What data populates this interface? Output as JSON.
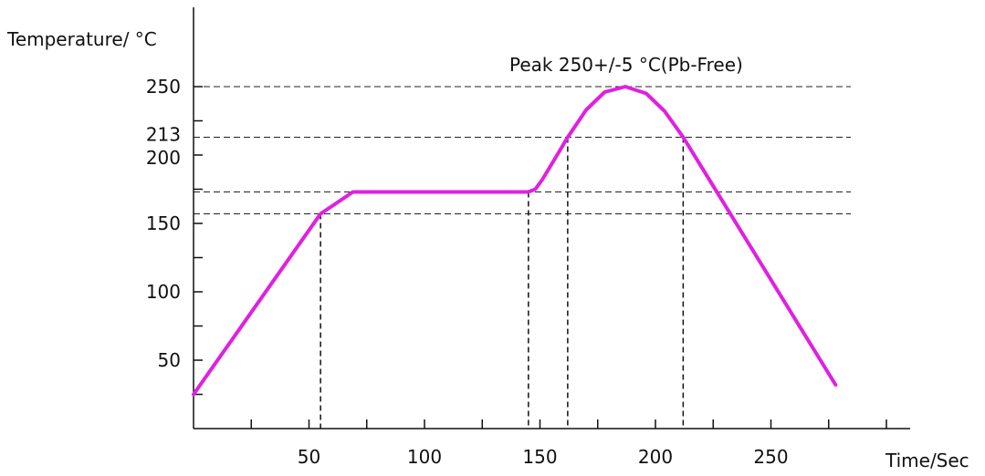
{
  "chart_data": {
    "type": "line",
    "title": "",
    "ylabel": "Temperature/ °C",
    "xlabel": "Time/Sec",
    "xlim": [
      0,
      310
    ],
    "ylim": [
      0,
      265
    ],
    "x_ticks": [
      50,
      100,
      150,
      200,
      250
    ],
    "x_minor_ticks": [
      25,
      75,
      125,
      175,
      225,
      275,
      300
    ],
    "y_ticks": [
      50,
      100,
      150,
      200,
      250
    ],
    "y_ticks_extra": [
      213
    ],
    "y_minor_ticks": [
      25,
      75,
      125,
      175,
      225
    ],
    "line_color": "#e020e0",
    "series": [
      {
        "name": "",
        "points": [
          [
            0,
            25
          ],
          [
            55,
            157
          ],
          [
            69,
            173
          ],
          [
            145,
            173
          ],
          [
            148,
            175
          ],
          [
            151,
            182
          ],
          [
            156,
            196
          ],
          [
            162,
            213
          ],
          [
            170,
            233
          ],
          [
            178,
            246
          ],
          [
            187,
            250
          ],
          [
            196,
            245
          ],
          [
            204,
            232
          ],
          [
            212,
            213
          ],
          [
            278,
            32
          ]
        ]
      }
    ],
    "reference_lines": {
      "horizontal": [
        250,
        213,
        173,
        157
      ],
      "vertical": [
        55,
        145,
        162,
        212
      ]
    },
    "annotations": [
      {
        "text": "Peak 250+/-5  °C(Pb-Free)",
        "x": 165,
        "y": 262
      }
    ],
    "grid": false
  }
}
